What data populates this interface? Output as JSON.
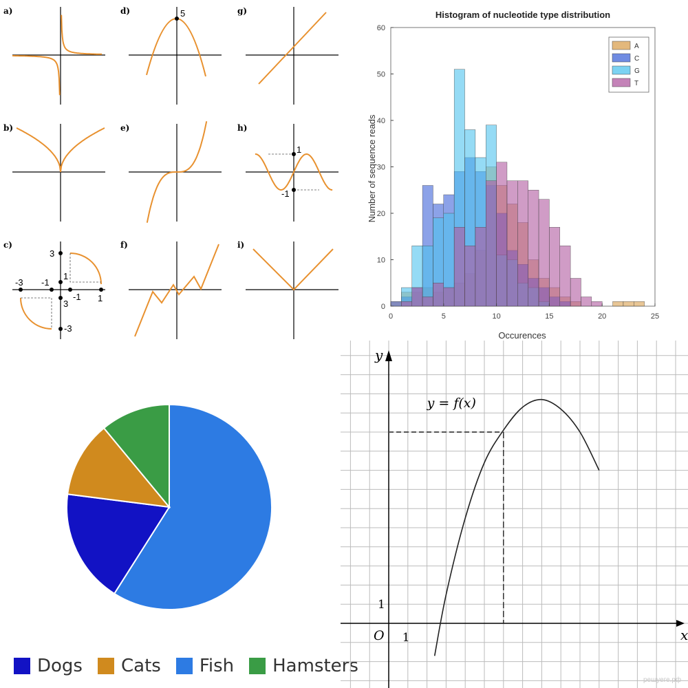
{
  "chart_data": [
    {
      "type": "line",
      "panel": "function-grid",
      "subplots": [
        {
          "label": "a)",
          "function": "hyperbola",
          "annotations": []
        },
        {
          "label": "b)",
          "function": "root-abs",
          "annotations": []
        },
        {
          "label": "c)",
          "function": "quarter-circles",
          "annotations": [
            "3",
            "-3",
            "-1",
            "1",
            "-1",
            "1",
            "3",
            "-3"
          ]
        },
        {
          "label": "d)",
          "function": "downward-parabola",
          "annotations": [
            "5"
          ]
        },
        {
          "label": "e)",
          "function": "cubic",
          "annotations": []
        },
        {
          "label": "f)",
          "function": "zigzag",
          "annotations": []
        },
        {
          "label": "g)",
          "function": "linear",
          "annotations": []
        },
        {
          "label": "h)",
          "function": "sine",
          "annotations": [
            "1",
            "-1"
          ]
        },
        {
          "label": "i)",
          "function": "absolute-value",
          "annotations": []
        }
      ],
      "colors": {
        "curve": "#E8912F",
        "axis": "#000000"
      }
    },
    {
      "type": "bar",
      "title": "Histogram of nucleotide type distribution",
      "xlabel": "Occurences",
      "ylabel": "Number of sequence reads",
      "xlim": [
        0,
        25
      ],
      "ylim": [
        0,
        60
      ],
      "x_ticks": [
        "0",
        "5",
        "10",
        "15",
        "20",
        "25"
      ],
      "y_ticks": [
        "0",
        "10",
        "20",
        "30",
        "40",
        "50",
        "60"
      ],
      "bin_width": 1,
      "legend_position": "top-right",
      "series": [
        {
          "name": "A",
          "color": "#D9A050",
          "bins": [
            [
              0,
              1
            ],
            [
              1,
              3
            ],
            [
              2,
              3
            ],
            [
              3,
              4
            ],
            [
              4,
              3
            ],
            [
              5,
              4
            ],
            [
              6,
              5
            ],
            [
              7,
              7
            ],
            [
              8,
              12
            ],
            [
              9,
              30
            ],
            [
              10,
              26
            ],
            [
              11,
              22
            ],
            [
              12,
              18
            ],
            [
              13,
              10
            ],
            [
              14,
              6
            ],
            [
              15,
              4
            ],
            [
              16,
              2
            ],
            [
              17,
              1
            ],
            [
              21,
              1
            ],
            [
              22,
              1
            ],
            [
              23,
              1
            ]
          ]
        },
        {
          "name": "C",
          "color": "#3F64D8",
          "bins": [
            [
              0,
              1
            ],
            [
              1,
              2
            ],
            [
              2,
              4
            ],
            [
              3,
              26
            ],
            [
              4,
              22
            ],
            [
              5,
              24
            ],
            [
              6,
              29
            ],
            [
              7,
              32
            ],
            [
              8,
              29
            ],
            [
              9,
              26
            ],
            [
              10,
              20
            ],
            [
              11,
              12
            ],
            [
              12,
              9
            ],
            [
              13,
              6
            ],
            [
              14,
              4
            ],
            [
              15,
              2
            ],
            [
              16,
              1
            ]
          ]
        },
        {
          "name": "G",
          "color": "#4FC3EE",
          "bins": [
            [
              1,
              4
            ],
            [
              2,
              13
            ],
            [
              3,
              13
            ],
            [
              4,
              19
            ],
            [
              5,
              20
            ],
            [
              6,
              51
            ],
            [
              7,
              38
            ],
            [
              8,
              32
            ],
            [
              9,
              39
            ],
            [
              10,
              11
            ],
            [
              11,
              10
            ],
            [
              12,
              5
            ],
            [
              13,
              4
            ],
            [
              14,
              1
            ]
          ]
        },
        {
          "name": "T",
          "color": "#B05AA0",
          "bins": [
            [
              1,
              1
            ],
            [
              2,
              4
            ],
            [
              3,
              2
            ],
            [
              4,
              5
            ],
            [
              5,
              4
            ],
            [
              6,
              17
            ],
            [
              7,
              13
            ],
            [
              8,
              17
            ],
            [
              9,
              27
            ],
            [
              10,
              31
            ],
            [
              11,
              27
            ],
            [
              12,
              27
            ],
            [
              13,
              25
            ],
            [
              14,
              23
            ],
            [
              15,
              17
            ],
            [
              16,
              13
            ],
            [
              17,
              6
            ],
            [
              18,
              2
            ],
            [
              19,
              1
            ]
          ]
        }
      ]
    },
    {
      "type": "pie",
      "labels": [
        "Dogs",
        "Cats",
        "Fish",
        "Hamsters"
      ],
      "values": [
        18,
        12,
        59,
        11
      ],
      "colors": [
        "#1212C4",
        "#D08A1E",
        "#2D7BE3",
        "#3A9C45"
      ],
      "legend_position": "bottom"
    },
    {
      "type": "line",
      "panel": "function-graph",
      "curve_label": "y = f(x)",
      "axis_labels": {
        "x": "x",
        "y": "y",
        "origin": "O",
        "x_unit": "1",
        "y_unit": "1"
      },
      "x": [
        2.4,
        3,
        4,
        5,
        6,
        7,
        8,
        9,
        10,
        11
      ],
      "y": [
        -1.7,
        1.5,
        5.5,
        8.4,
        10.1,
        11.3,
        11.7,
        11.2,
        10.0,
        8.0
      ],
      "marked_point": {
        "x": 6,
        "y": 10
      },
      "watermark": "решуеге.рф"
    }
  ]
}
